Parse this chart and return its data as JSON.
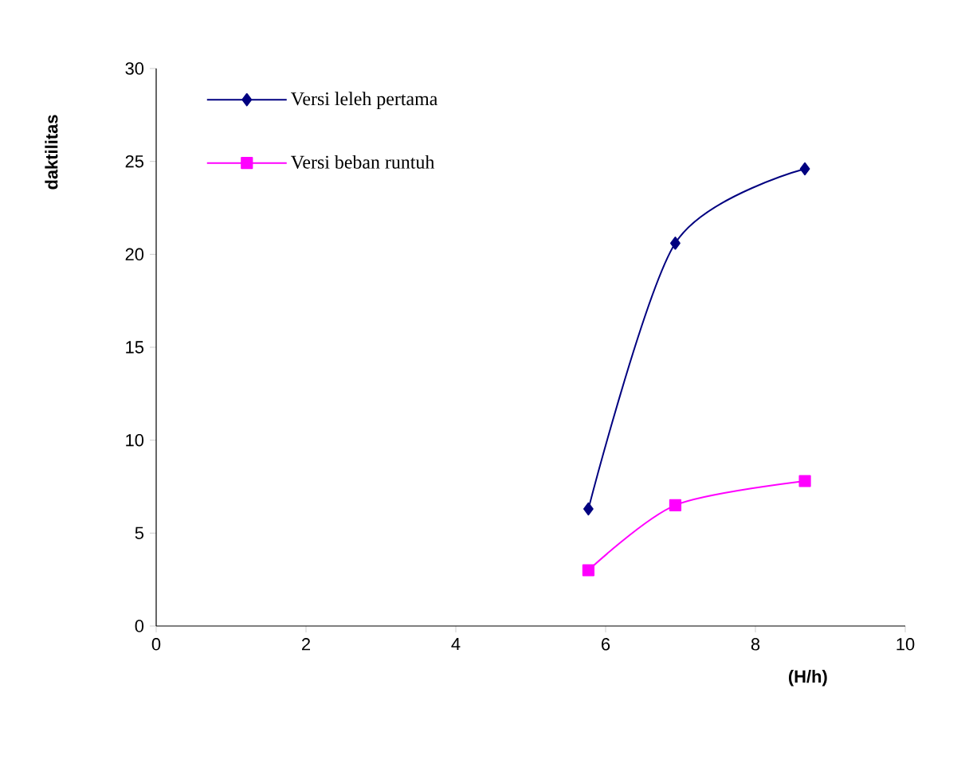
{
  "chart_data": {
    "type": "line",
    "xlabel": "(H/h)",
    "ylabel": "daktilitas",
    "xlim": [
      0,
      10
    ],
    "xticks": [
      0,
      2,
      4,
      6,
      8,
      10
    ],
    "ylim": [
      0,
      30
    ],
    "yticks": [
      0,
      5,
      10,
      15,
      20,
      25,
      30
    ],
    "grid": false,
    "legend": "top left",
    "line_style": "solid",
    "series": [
      {
        "name": "Versi leleh pertama",
        "color": "#000080",
        "marker": "diamond",
        "x": [
          5.77,
          6.93,
          8.66
        ],
        "values": [
          6.3,
          20.6,
          24.6
        ]
      },
      {
        "name": "Versi beban runtuh",
        "color": "#ff00ff",
        "marker": "square",
        "x": [
          5.77,
          6.93,
          8.66
        ],
        "values": [
          3.0,
          6.5,
          7.8
        ]
      }
    ]
  }
}
